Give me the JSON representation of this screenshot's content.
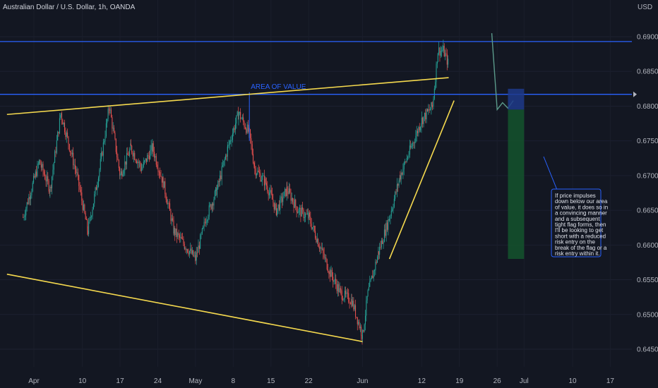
{
  "chart_data": {
    "type": "candlestick",
    "title": "Australian Dollar / U.S. Dollar, 1h, OANDA",
    "currency": "USD",
    "ylim": [
      0.6425,
      0.692
    ],
    "y_ticks": [
      "0.69000",
      "0.68500",
      "0.68000",
      "0.67500",
      "0.67000",
      "0.66500",
      "0.66000",
      "0.65500",
      "0.65000",
      "0.64500"
    ],
    "x_ticks": [
      "Apr",
      "10",
      "17",
      "24",
      "May",
      "8",
      "15",
      "22",
      "Jun",
      "12",
      "19",
      "26",
      "Jul",
      "10",
      "17"
    ],
    "price_path": [
      [
        "Mar 30",
        0.664
      ],
      [
        "Apr 2",
        0.672
      ],
      [
        "Apr 4",
        0.668
      ],
      [
        "Apr 6",
        0.679
      ],
      [
        "Apr 9",
        0.67
      ],
      [
        "Apr 11",
        0.662
      ],
      [
        "Apr 13",
        0.67
      ],
      [
        "Apr 15",
        0.68
      ],
      [
        "Apr 17",
        0.67
      ],
      [
        "Apr 19",
        0.674
      ],
      [
        "Apr 21",
        0.671
      ],
      [
        "Apr 23",
        0.674
      ],
      [
        "Apr 25",
        0.669
      ],
      [
        "Apr 27",
        0.662
      ],
      [
        "Apr 29",
        0.66
      ],
      [
        "May 1",
        0.658
      ],
      [
        "May 3",
        0.664
      ],
      [
        "May 5",
        0.668
      ],
      [
        "May 7",
        0.674
      ],
      [
        "May 9",
        0.679
      ],
      [
        "May 11",
        0.676
      ],
      [
        "May 12",
        0.671
      ],
      [
        "May 14",
        0.669
      ],
      [
        "May 16",
        0.665
      ],
      [
        "May 18",
        0.668
      ],
      [
        "May 20",
        0.665
      ],
      [
        "May 22",
        0.664
      ],
      [
        "May 24",
        0.66
      ],
      [
        "May 26",
        0.656
      ],
      [
        "May 28",
        0.653
      ],
      [
        "May 30",
        0.652
      ],
      [
        "Jun 1",
        0.647
      ],
      [
        "Jun 2",
        0.653
      ],
      [
        "Jun 4",
        0.659
      ],
      [
        "Jun 6",
        0.664
      ],
      [
        "Jun 8",
        0.67
      ],
      [
        "Jun 10",
        0.674
      ],
      [
        "Jun 12",
        0.678
      ],
      [
        "Jun 14",
        0.68
      ],
      [
        "Jun 15",
        0.688
      ],
      [
        "Jun 16",
        0.688
      ],
      [
        "Jun 17",
        0.686
      ]
    ],
    "projection_path": [
      [
        "Jun 25",
        0.6905
      ],
      [
        "Jun 26",
        0.6795
      ],
      [
        "Jun 27",
        0.6805
      ],
      [
        "Jun 28",
        0.6797
      ],
      [
        "Jun 29",
        0.6808
      ]
    ],
    "horizontal_levels": [
      0.6893,
      0.6817
    ],
    "trendlines": [
      {
        "from": [
          "Mar 27",
          0.6788
        ],
        "to": [
          "Jun 17",
          0.6841
        ]
      },
      {
        "from": [
          "Mar 27",
          0.6558
        ],
        "to": [
          "Jun 1",
          0.6461
        ]
      },
      {
        "from": [
          "Jun 6",
          0.658
        ],
        "to": [
          "Jun 18",
          0.6808
        ]
      }
    ],
    "annotation": {
      "label": "AREA OF VALUE",
      "at": [
        "May 11",
        0.682
      ]
    },
    "short_position": {
      "x_range": [
        "Jun 28",
        "Jul 1"
      ],
      "stop_zone": [
        0.6795,
        0.6825
      ],
      "target_zone": [
        0.658,
        0.6795
      ]
    },
    "note": {
      "lines": [
        "If price impulses",
        "down below our area",
        "of value, it does so in",
        "a convincing manner",
        "and a subsequent",
        "tight flag forms, then",
        "I'll be looking to get",
        "short with a reduced",
        "risk entry on the",
        "break of the flag or a",
        "risk entry within it."
      ]
    },
    "colors": {
      "background": "#131722",
      "up": "#26a69a",
      "down": "#ef5350",
      "level_line": "#2962ff",
      "trendline": "#f5d94e",
      "stop_fill": "#1e3a8a",
      "target_fill": "#14532d",
      "note_border": "#2962ff",
      "axis_text": "#b2b5be",
      "projection": "#5b9a8b"
    }
  }
}
